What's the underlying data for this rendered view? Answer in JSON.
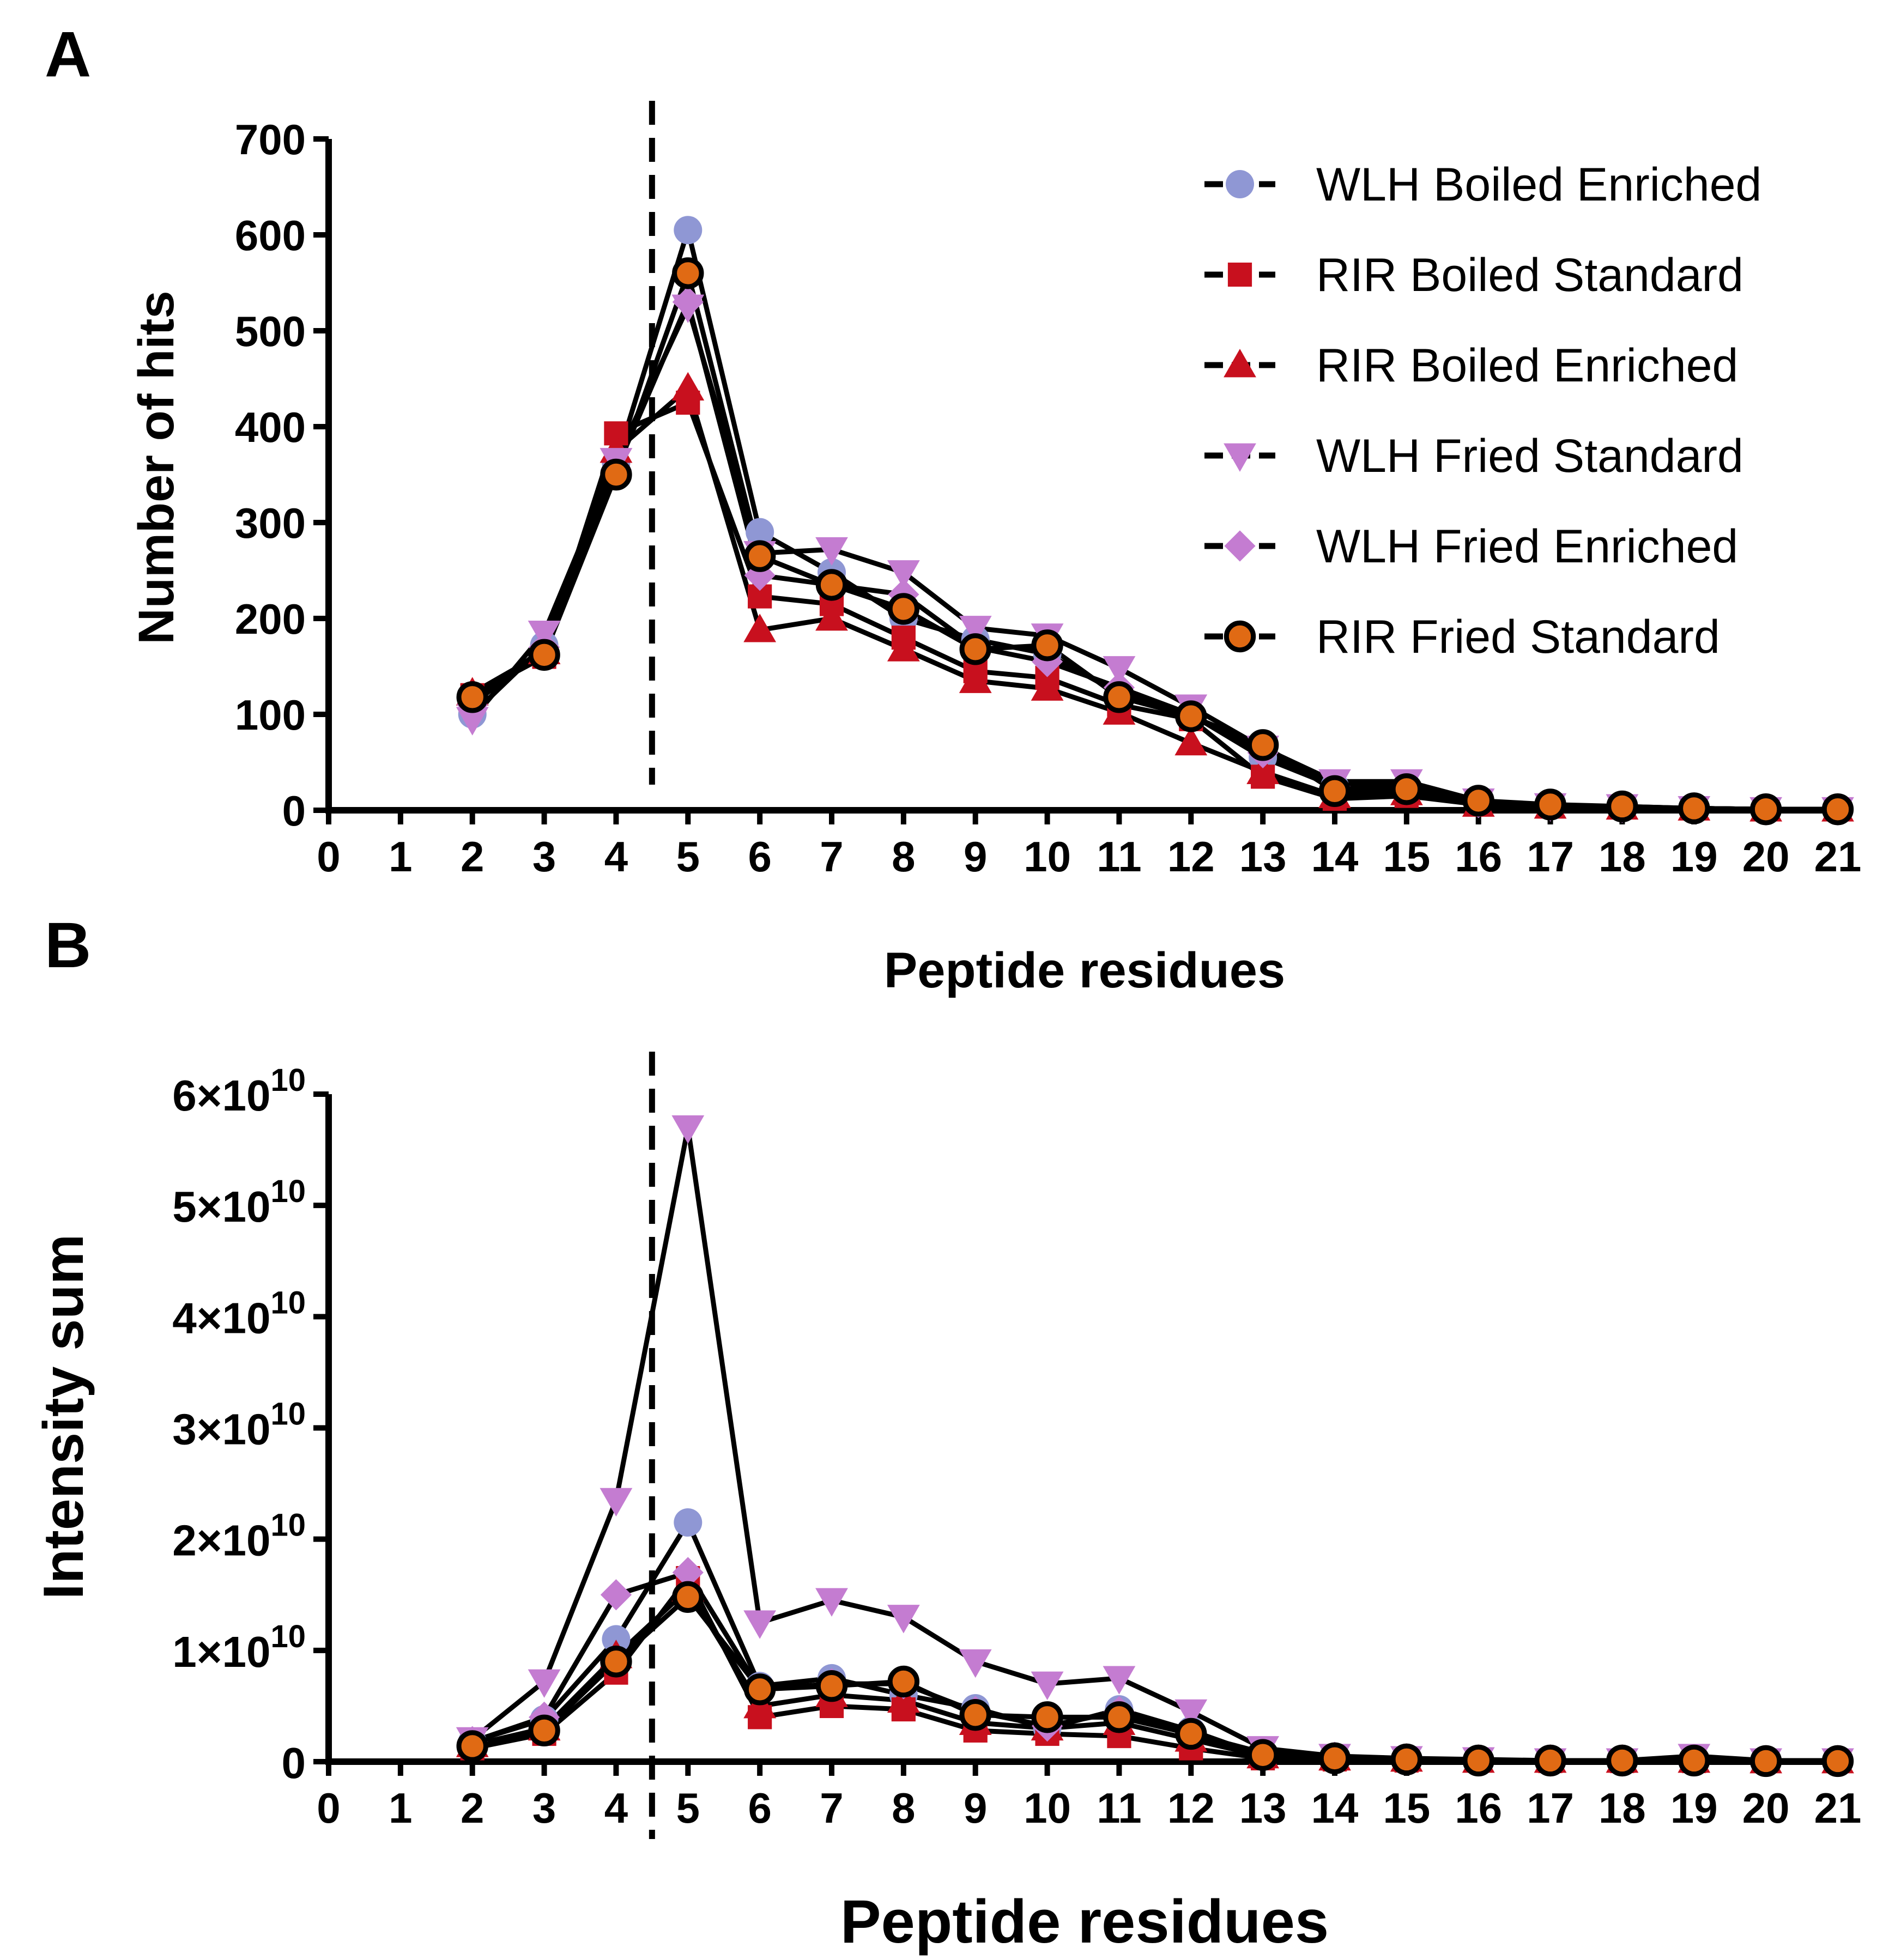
{
  "colors": {
    "axis": "#000000",
    "line": "#000000",
    "wlh_boiled_enriched": "#8f97d4",
    "rir_red": "#c8101e",
    "wlh_fried": "#c47cd1",
    "rir_fried_fill": "#e06a14"
  },
  "chart_data": [
    {
      "panel_label": "A",
      "type": "line",
      "title": "",
      "xlabel": "Peptide residues",
      "ylabel": "Number of hits",
      "xlim": [
        0,
        21
      ],
      "ylim": [
        0,
        700
      ],
      "xticks": [
        "0",
        "1",
        "2",
        "3",
        "4",
        "5",
        "6",
        "7",
        "8",
        "9",
        "10",
        "11",
        "12",
        "13",
        "14",
        "15",
        "16",
        "17",
        "18",
        "19",
        "20",
        "21"
      ],
      "yticks": [
        "0",
        "100",
        "200",
        "300",
        "400",
        "500",
        "600",
        "700"
      ],
      "ytick_values": [
        0,
        100,
        200,
        300,
        400,
        500,
        600,
        700
      ],
      "vline_x": 4.5,
      "legend_position": "top-right",
      "x": [
        2,
        3,
        4,
        5,
        6,
        7,
        8,
        9,
        10,
        11,
        12,
        13,
        14,
        15,
        16,
        17,
        18,
        19,
        20,
        21
      ],
      "series": [
        {
          "name": "WLH Boiled Enriched",
          "marker": "circle",
          "color_key": "wlh_boiled_enriched",
          "values": [
            100,
            172,
            362,
            605,
            290,
            248,
            200,
            178,
            163,
            122,
            100,
            55,
            25,
            25,
            8,
            5,
            3,
            2,
            1,
            1
          ]
        },
        {
          "name": "RIR Boiled Standard",
          "marker": "square",
          "color_key": "rir_red",
          "values": [
            120,
            160,
            393,
            425,
            223,
            215,
            180,
            145,
            138,
            110,
            95,
            35,
            12,
            15,
            6,
            4,
            3,
            2,
            1,
            1
          ]
        },
        {
          "name": "RIR Boiled Enriched",
          "marker": "triangle-up",
          "color_key": "rir_red",
          "values": [
            122,
            165,
            375,
            440,
            188,
            200,
            168,
            135,
            127,
            102,
            70,
            40,
            15,
            18,
            6,
            4,
            3,
            2,
            1,
            1
          ]
        },
        {
          "name": "WLH Fried Standard",
          "marker": "triangle-down",
          "color_key": "wlh_fried",
          "values": [
            95,
            185,
            365,
            525,
            268,
            272,
            248,
            190,
            182,
            148,
            108,
            65,
            30,
            30,
            10,
            5,
            4,
            2,
            1,
            1
          ]
        },
        {
          "name": "WLH Fried Enriched",
          "marker": "diamond",
          "color_key": "wlh_fried",
          "values": [
            110,
            170,
            355,
            530,
            245,
            235,
            225,
            170,
            155,
            128,
            100,
            60,
            25,
            25,
            8,
            5,
            3,
            2,
            1,
            1
          ]
        },
        {
          "name": "RIR Fried Standard",
          "marker": "circle-outline",
          "color_key": "rir_fried_fill",
          "values": [
            118,
            162,
            350,
            560,
            265,
            235,
            210,
            168,
            172,
            118,
            98,
            68,
            20,
            22,
            10,
            6,
            4,
            2,
            1,
            1
          ]
        }
      ]
    },
    {
      "panel_label": "B",
      "type": "line",
      "title": "",
      "xlabel": "Peptide residues",
      "ylabel": "Intensity sum",
      "xlim": [
        0,
        21
      ],
      "ylim": [
        0,
        60000000000
      ],
      "xticks": [
        "0",
        "1",
        "2",
        "3",
        "4",
        "5",
        "6",
        "7",
        "8",
        "9",
        "10",
        "11",
        "12",
        "13",
        "14",
        "15",
        "16",
        "17",
        "18",
        "19",
        "20",
        "21"
      ],
      "yticks": [
        {
          "value": 0,
          "mantissa": "0",
          "exp": ""
        },
        {
          "value": 10000000000,
          "mantissa": "1×10",
          "exp": "10"
        },
        {
          "value": 20000000000,
          "mantissa": "2×10",
          "exp": "10"
        },
        {
          "value": 30000000000,
          "mantissa": "3×10",
          "exp": "10"
        },
        {
          "value": 40000000000,
          "mantissa": "4×10",
          "exp": "10"
        },
        {
          "value": 50000000000,
          "mantissa": "5×10",
          "exp": "10"
        },
        {
          "value": 60000000000,
          "mantissa": "6×10",
          "exp": "10"
        }
      ],
      "vline_x": 4.5,
      "x": [
        2,
        3,
        4,
        5,
        6,
        7,
        8,
        9,
        10,
        11,
        12,
        13,
        14,
        15,
        16,
        17,
        18,
        19,
        20,
        21
      ],
      "series": [
        {
          "name": "WLH Boiled Enriched",
          "marker": "circle",
          "color_key": "wlh_boiled_enriched",
          "values": [
            1800000000.0,
            3800000000.0,
            11000000000.0,
            21500000000.0,
            6800000000.0,
            7500000000.0,
            6000000000.0,
            4800000000.0,
            3000000000.0,
            4700000000.0,
            2800000000.0,
            500000000.0,
            300000000.0,
            200000000.0,
            100000000.0,
            100000000.0,
            100000000.0,
            100000000.0,
            50000000.0,
            50000000.0
          ]
        },
        {
          "name": "RIR Boiled Standard",
          "marker": "square",
          "color_key": "rir_red",
          "values": [
            1200000000.0,
            2500000000.0,
            8000000000.0,
            16500000000.0,
            4000000000.0,
            5000000000.0,
            4700000000.0,
            2800000000.0,
            2500000000.0,
            2300000000.0,
            1200000000.0,
            300000000.0,
            200000000.0,
            100000000.0,
            100000000.0,
            50000000.0,
            50000000.0,
            50000000.0,
            50000000.0,
            50000000.0
          ]
        },
        {
          "name": "RIR Boiled Enriched",
          "marker": "triangle-up",
          "color_key": "rir_red",
          "values": [
            1500000000.0,
            3000000000.0,
            9500000000.0,
            15500000000.0,
            5000000000.0,
            6000000000.0,
            5500000000.0,
            3500000000.0,
            3000000000.0,
            3500000000.0,
            2000000000.0,
            500000000.0,
            300000000.0,
            200000000.0,
            100000000.0,
            100000000.0,
            100000000.0,
            100000000.0,
            50000000.0,
            50000000.0
          ]
        },
        {
          "name": "WLH Fried Standard",
          "marker": "triangle-down",
          "color_key": "wlh_fried",
          "values": [
            2000000000.0,
            7200000000.0,
            23500000000.0,
            57000000000.0,
            12500000000.0,
            14500000000.0,
            13000000000.0,
            9000000000.0,
            7000000000.0,
            7500000000.0,
            4500000000.0,
            1200000000.0,
            500000000.0,
            300000000.0,
            200000000.0,
            100000000.0,
            100000000.0,
            500000000.0,
            100000000.0,
            100000000.0
          ]
        },
        {
          "name": "WLH Fried Enriched",
          "marker": "diamond",
          "color_key": "wlh_fried",
          "values": [
            1800000000.0,
            4000000000.0,
            15000000000.0,
            17000000000.0,
            6500000000.0,
            7000000000.0,
            7000000000.0,
            4500000000.0,
            3200000000.0,
            4500000000.0,
            2500000000.0,
            800000000.0,
            400000000.0,
            200000000.0,
            100000000.0,
            100000000.0,
            100000000.0,
            100000000.0,
            50000000.0,
            50000000.0
          ]
        },
        {
          "name": "RIR Fried Standard",
          "marker": "circle-outline",
          "color_key": "rir_fried_fill",
          "values": [
            1400000000.0,
            2800000000.0,
            9000000000.0,
            14800000000.0,
            6500000000.0,
            6800000000.0,
            7200000000.0,
            4200000000.0,
            4000000000.0,
            4000000000.0,
            2500000000.0,
            600000000.0,
            300000000.0,
            200000000.0,
            100000000.0,
            100000000.0,
            100000000.0,
            100000000.0,
            50000000.0,
            50000000.0
          ]
        }
      ]
    }
  ]
}
